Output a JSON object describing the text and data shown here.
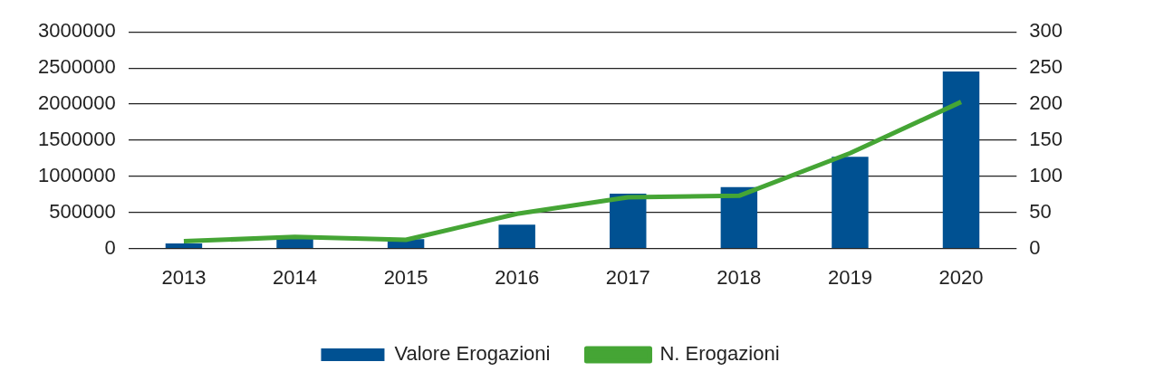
{
  "chart_data": {
    "type": "bar",
    "categories": [
      "2013",
      "2014",
      "2015",
      "2016",
      "2017",
      "2018",
      "2019",
      "2020"
    ],
    "series": [
      {
        "name": "Valore Erogazioni",
        "color": "#005192",
        "values": [
          70000,
          150000,
          130000,
          330000,
          760000,
          850000,
          1270000,
          2450000
        ]
      },
      {
        "name": "N. Erogazioni",
        "type": "line",
        "axis": "y2",
        "color": "#45a535",
        "values": [
          10,
          16,
          12,
          48,
          71,
          73,
          132,
          203
        ]
      }
    ],
    "ylim": [
      0,
      3000000
    ],
    "yticks": [
      0,
      500000,
      1000000,
      1500000,
      2000000,
      2500000,
      3000000
    ],
    "y2lim": [
      0,
      300
    ],
    "y2ticks": [
      0,
      50,
      100,
      150,
      200,
      250,
      300
    ],
    "grid": "y",
    "legend": "bottom",
    "marker": "none",
    "line_style": "solid"
  }
}
